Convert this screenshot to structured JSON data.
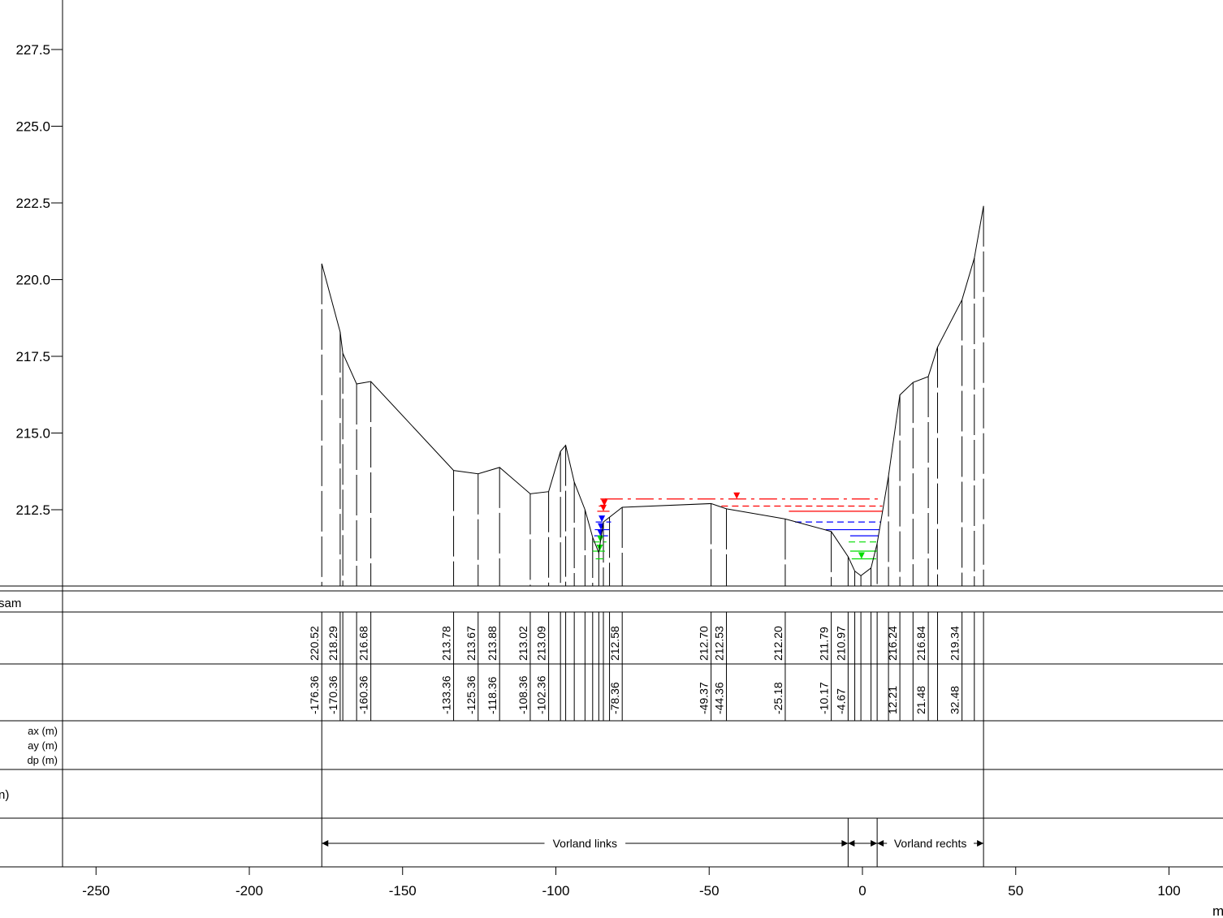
{
  "chart_data": {
    "type": "line",
    "xunit": "m",
    "xticks": [
      -250,
      -200,
      -150,
      -100,
      -50,
      0,
      50,
      100
    ],
    "yticks": [
      "227.5",
      "225.0",
      "222.5",
      "220.0",
      "217.5",
      "215.0",
      "212.5"
    ],
    "xlim": [
      -260,
      116
    ],
    "ylim": [
      209.8,
      229.0
    ],
    "profile": [
      [
        -176.36,
        220.52
      ],
      [
        -170.36,
        218.29
      ],
      [
        -169.5,
        217.6
      ],
      [
        -165.0,
        216.6
      ],
      [
        -160.36,
        216.68
      ],
      [
        -133.36,
        213.78
      ],
      [
        -125.36,
        213.67
      ],
      [
        -118.36,
        213.88
      ],
      [
        -108.36,
        213.02
      ],
      [
        -102.36,
        213.09
      ],
      [
        -98.5,
        214.4
      ],
      [
        -96.8,
        214.6
      ],
      [
        -94.0,
        213.4
      ],
      [
        -90.5,
        212.5
      ],
      [
        -88.0,
        211.6
      ],
      [
        -86.0,
        211.1
      ],
      [
        -84.5,
        212.1
      ],
      [
        -78.36,
        212.58
      ],
      [
        -49.37,
        212.7
      ],
      [
        -44.36,
        212.53
      ],
      [
        -25.18,
        212.2
      ],
      [
        -10.17,
        211.79
      ],
      [
        -4.67,
        210.97
      ],
      [
        -2.5,
        210.5
      ],
      [
        -0.5,
        210.35
      ],
      [
        2.8,
        210.6
      ],
      [
        4.8,
        211.4
      ],
      [
        8.5,
        213.6
      ],
      [
        12.21,
        216.24
      ],
      [
        16.5,
        216.65
      ],
      [
        21.48,
        216.84
      ],
      [
        24.5,
        217.8
      ],
      [
        32.48,
        219.34
      ],
      [
        36.5,
        220.7
      ],
      [
        39.5,
        222.4
      ]
    ],
    "profile_labels": [
      {
        "x": -176.36,
        "elev": "220.52",
        "offset": "-176.36"
      },
      {
        "x": -170.36,
        "elev": "218.29",
        "offset": "-170.36"
      },
      {
        "x": -160.36,
        "elev": "216.68",
        "offset": "-160.36"
      },
      {
        "x": -133.36,
        "elev": "213.78",
        "offset": "-133.36"
      },
      {
        "x": -125.36,
        "elev": "213.67",
        "offset": "-125.36"
      },
      {
        "x": -118.36,
        "elev": "213.88",
        "offset": "-118.36"
      },
      {
        "x": -108.36,
        "elev": "213.02",
        "offset": "-108.36"
      },
      {
        "x": -102.36,
        "elev": "213.09",
        "offset": "-102.36"
      },
      {
        "x": -78.36,
        "elev": "212.58",
        "offset": "-78.36"
      },
      {
        "x": -49.37,
        "elev": "212.70",
        "offset": "-49.37"
      },
      {
        "x": -44.36,
        "elev": "212.53",
        "offset": "-44.36"
      },
      {
        "x": -25.18,
        "elev": "212.20",
        "offset": "-25.18"
      },
      {
        "x": -10.17,
        "elev": "211.79",
        "offset": "-10.17"
      },
      {
        "x": -4.67,
        "elev": "210.97",
        "offset": "-4.67"
      },
      {
        "x": 12.21,
        "elev": "216.24",
        "offset": "12.21"
      },
      {
        "x": 21.48,
        "elev": "216.84",
        "offset": "21.48"
      },
      {
        "x": 32.48,
        "elev": "219.34",
        "offset": "32.48"
      }
    ],
    "extra_station_lines": [
      -169.5,
      -165.0,
      -98.5,
      -96.8,
      -94.0,
      -90.5,
      -88.0,
      -86.0,
      -84.5,
      -82.5,
      -2.5,
      -0.5,
      2.8,
      4.8,
      8.5,
      16.5,
      24.5,
      36.5,
      39.5
    ],
    "water_levels": [
      {
        "color": "#ff0000",
        "dash": "dashdot",
        "elev": 212.85,
        "main_x": [
          -85.5,
          -83.5
        ],
        "fore_x": [
          -84.0,
          6.5
        ],
        "marker_x": -41.0
      },
      {
        "color": "#ff0000",
        "dash": "dash",
        "elev": 212.62,
        "main_x": [
          -86.0,
          -83.0
        ],
        "fore_x": [
          -46.0,
          6.5
        ],
        "marker_x": -84.2
      },
      {
        "color": "#ff0000",
        "dash": "solid",
        "elev": 212.45,
        "main_x": [
          -86.5,
          -82.5
        ],
        "fore_x": [
          -24.0,
          6.5
        ],
        "marker_x": -84.5
      },
      {
        "color": "#0000ff",
        "dash": "dash",
        "elev": 212.1,
        "main_x": [
          -87.0,
          -82.0
        ],
        "fore_x": [
          -22.0,
          6.0
        ],
        "marker_x": -85.0
      },
      {
        "color": "#0000ff",
        "dash": "solid",
        "elev": 211.85,
        "main_x": [
          -87.3,
          -82.5
        ],
        "fore_x": [
          -12.0,
          5.5
        ],
        "marker_x": -85.3
      },
      {
        "color": "#0000ff",
        "dash": "solid",
        "elev": 211.65,
        "main_x": [
          -87.5,
          -83.0
        ],
        "fore_x": [
          -4.0,
          5.2
        ],
        "marker_x": -85.5
      },
      {
        "color": "#00dd00",
        "dash": "dash",
        "elev": 211.45,
        "main_x": [
          -87.8,
          -83.5
        ],
        "fore_x": [
          -4.5,
          5.0
        ],
        "marker_x": -85.5
      },
      {
        "color": "#00dd00",
        "dash": "solid",
        "elev": 211.15,
        "main_x": [
          -88.0,
          -84.0
        ],
        "fore_x": [
          -4.0,
          4.8
        ],
        "marker_x": -85.7
      },
      {
        "color": "#00dd00",
        "dash": "solid",
        "elev": 210.9,
        "main_x": [
          -87.0,
          -84.5
        ],
        "fore_x": [
          -3.5,
          4.5
        ],
        "marker_x": -0.3
      }
    ],
    "bewuchs_lines": [
      -176.36,
      39.5
    ],
    "zones": [
      {
        "label": "Vorland links",
        "from": -176.36,
        "to": -4.67
      },
      {
        "label": "",
        "from": -4.67,
        "to": 4.8
      },
      {
        "label": "Vorland rechts",
        "from": 4.8,
        "to": 39.5
      }
    ]
  },
  "table": {
    "row0_label": "sam",
    "row3_labels": [
      "ax (m)",
      "ay (m)",
      "dp (m)"
    ],
    "row4_label": "n)"
  }
}
